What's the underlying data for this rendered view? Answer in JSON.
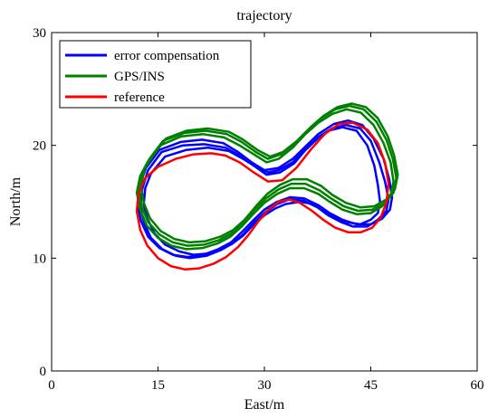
{
  "chart_data": {
    "type": "line",
    "title": "trajectory",
    "xlabel": "East/m",
    "ylabel": "North/m",
    "xlim": [
      0,
      60
    ],
    "ylim": [
      0,
      30
    ],
    "xticks": [
      0,
      15,
      30,
      45,
      60
    ],
    "yticks": [
      0,
      10,
      20,
      30
    ],
    "grid": false,
    "legend_position": "top-left",
    "series": [
      {
        "name": "error compensation",
        "color": "#0000ff",
        "laps": [
          {
            "x": [
              14,
              16,
              19,
              22,
              25,
              27,
              29,
              30.5,
              32,
              34,
              35.5,
              37,
              39,
              41,
              43,
              44.5,
              45.5,
              46,
              46.3,
              46,
              45,
              43.5,
              41.5,
              40,
              38.5,
              37,
              35,
              33,
              31.5,
              30,
              28.5,
              27,
              25.5,
              24,
              22,
              20,
              18,
              16,
              14.5,
              13.5,
              13,
              13.2,
              14
            ],
            "y": [
              17.5,
              19,
              19.6,
              19.8,
              19.5,
              18.8,
              18,
              17.6,
              17.8,
              18.5,
              19.5,
              20.5,
              21.3,
              21.6,
              21.3,
              20,
              18.2,
              16.5,
              15,
              14,
              13.4,
              13,
              13.2,
              13.6,
              14.2,
              14.8,
              15,
              14.8,
              14.4,
              13.8,
              13,
              12,
              11.3,
              10.8,
              10.4,
              10.3,
              10.6,
              11.2,
              12.2,
              13.5,
              14.8,
              16.2,
              17.5
            ]
          },
          {
            "x": [
              13.6,
              15.5,
              18.5,
              21.5,
              24.5,
              26.5,
              28.5,
              30.3,
              32.2,
              34.2,
              35.8,
              37.5,
              39.5,
              41.5,
              43.5,
              45,
              46.2,
              47,
              47.5,
              47.2,
              46,
              44.5,
              42.5,
              40.8,
              39,
              37.5,
              35.5,
              33.5,
              31.8,
              30.2,
              28.6,
              27,
              25.5,
              23.8,
              21.8,
              19.5,
              17.5,
              15.6,
              14,
              13,
              12.5,
              12.8,
              13.6
            ],
            "y": [
              17.8,
              19.4,
              20,
              20.1,
              19.8,
              19.1,
              18.2,
              17.4,
              17.6,
              18.4,
              19.6,
              20.6,
              21.5,
              21.8,
              21.5,
              20.4,
              18.5,
              16.8,
              15.2,
              14.2,
              13.4,
              12.8,
              12.8,
              13.2,
              13.8,
              14.5,
              15.1,
              15.2,
              14.8,
              14.1,
              13.2,
              12.1,
              11.3,
              10.7,
              10.2,
              10,
              10.2,
              10.8,
              11.8,
              13.2,
              14.6,
              16.2,
              17.8
            ]
          },
          {
            "x": [
              13.3,
              15.2,
              18.2,
              21.2,
              24.2,
              26.3,
              28.2,
              30,
              32,
              34,
              35.8,
              37.6,
              39.8,
              41.8,
              43.8,
              45.4,
              46.8,
              47.6,
              48,
              47.7,
              46.6,
              45,
              43,
              41,
              39.2,
              37.6,
              35.6,
              33.6,
              31.8,
              30,
              28.5,
              26.8,
              25.3,
              23.5,
              21.4,
              19.2,
              17.1,
              15.2,
              13.6,
              12.6,
              12.1,
              12.4,
              13.3
            ],
            "y": [
              18,
              19.6,
              20.3,
              20.5,
              20.2,
              19.4,
              18.5,
              17.8,
              18,
              18.8,
              19.9,
              21,
              21.9,
              22.2,
              21.8,
              20.6,
              18.8,
              17,
              15.4,
              14.3,
              13.5,
              13,
              13,
              13.4,
              14,
              14.7,
              15.3,
              15.4,
              15,
              14.3,
              13.4,
              12.3,
              11.4,
              10.8,
              10.3,
              10.1,
              10.3,
              10.9,
              11.9,
              13.3,
              14.8,
              16.4,
              18
            ]
          }
        ]
      },
      {
        "name": "GPS/INS",
        "color": "#008000",
        "laps": [
          {
            "x": [
              13.5,
              15.3,
              18.3,
              21.3,
              24.3,
              26.5,
              28.5,
              30.3,
              32,
              34,
              35.8,
              37.6,
              39.6,
              41.6,
              43.6,
              45.4,
              46.8,
              47.8,
              48.2,
              47.8,
              46.6,
              45,
              43,
              41,
              39.2,
              37.6,
              35.6,
              33.6,
              31.8,
              30,
              28.4,
              26.8,
              25.2,
              23.4,
              21.3,
              19,
              16.9,
              15,
              13.4,
              12.5,
              12,
              12.5,
              13.5
            ],
            "y": [
              18.5,
              20,
              20.8,
              21,
              20.7,
              20,
              19.2,
              18.5,
              18.8,
              19.8,
              21,
              22,
              22.8,
              23.2,
              22.9,
              21.8,
              20.2,
              18.5,
              16.8,
              15.5,
              14.6,
              14,
              13.9,
              14.3,
              15,
              15.7,
              16.2,
              16.2,
              15.7,
              14.9,
              13.9,
              12.8,
              11.9,
              11.3,
              10.9,
              10.8,
              11.1,
              11.8,
              12.9,
              14.3,
              15.8,
              17.3,
              18.5
            ]
          },
          {
            "x": [
              13.8,
              15.7,
              18.7,
              21.7,
              24.7,
              26.8,
              28.8,
              30.5,
              32.3,
              34.3,
              36.2,
              38,
              40,
              42,
              44,
              45.8,
              47.2,
              48.1,
              48.6,
              48.2,
              47,
              45.2,
              43.2,
              41.2,
              39.4,
              37.8,
              35.8,
              33.8,
              32,
              30.2,
              28.6,
              27,
              25.4,
              23.6,
              21.5,
              19.2,
              17.1,
              15.2,
              13.6,
              12.7,
              12.3,
              12.8,
              13.8
            ],
            "y": [
              18.8,
              20.4,
              21.1,
              21.3,
              21,
              20.3,
              19.4,
              18.8,
              19.2,
              20.2,
              21.4,
              22.4,
              23.2,
              23.5,
              23.2,
              22.1,
              20.5,
              18.8,
              17.1,
              15.8,
              14.9,
              14.3,
              14.2,
              14.6,
              15.3,
              16,
              16.6,
              16.6,
              16.1,
              15.3,
              14.3,
              13.1,
              12.2,
              11.6,
              11.2,
              11.1,
              11.4,
              12.1,
              13.2,
              14.6,
              16.1,
              17.6,
              18.8
            ]
          },
          {
            "x": [
              14.2,
              16.1,
              19,
              22,
              25,
              27,
              29,
              30.8,
              32.6,
              34.6,
              36.5,
              38.3,
              40.3,
              42.3,
              44.3,
              46,
              47.4,
              48.3,
              48.8,
              48.4,
              47.2,
              45.5,
              43.5,
              41.5,
              39.6,
              38,
              36,
              34,
              32.2,
              30.4,
              28.8,
              27.2,
              25.6,
              23.8,
              21.7,
              19.4,
              17.3,
              15.4,
              13.9,
              13,
              12.6,
              13.1,
              14.2
            ],
            "y": [
              19,
              20.6,
              21.3,
              21.5,
              21.2,
              20.5,
              19.6,
              19,
              19.4,
              20.4,
              21.6,
              22.6,
              23.4,
              23.7,
              23.4,
              22.4,
              20.8,
              19.1,
              17.4,
              16.1,
              15.2,
              14.6,
              14.5,
              14.9,
              15.6,
              16.4,
              17,
              17,
              16.5,
              15.7,
              14.6,
              13.4,
              12.5,
              11.9,
              11.5,
              11.4,
              11.7,
              12.4,
              13.5,
              14.9,
              16.4,
              17.9,
              19
            ]
          }
        ]
      },
      {
        "name": "reference",
        "color": "#ff0000",
        "laps": [
          {
            "x": [
              12.3,
              13.2,
              15,
              17.5,
              20,
              22.5,
              24.5,
              26.5,
              28.5,
              30.5,
              32.5,
              34.5,
              36.5,
              38.5,
              40.5,
              42.5,
              44.5,
              46,
              47,
              47.5,
              47.2,
              46.4,
              45.2,
              43.6,
              41.8,
              40,
              38.3,
              36.7,
              35,
              33.5,
              32,
              30.6,
              29.2,
              27.8,
              26.3,
              24.6,
              22.8,
              20.8,
              18.8,
              16.8,
              15,
              13.5,
              12.5,
              12,
              12.3
            ],
            "y": [
              15.8,
              17.1,
              18.1,
              18.8,
              19.2,
              19.3,
              19.1,
              18.5,
              17.6,
              16.8,
              16.9,
              18,
              19.6,
              21,
              21.9,
              22,
              21.4,
              20.2,
              18.5,
              16.6,
              14.9,
              13.6,
              12.7,
              12.3,
              12.3,
              12.7,
              13.4,
              14.2,
              14.9,
              15.2,
              15,
              14.3,
              13.3,
              12.1,
              11,
              10.1,
              9.5,
              9.1,
              9,
              9.3,
              10,
              11.1,
              12.5,
              14.2,
              15.8
            ]
          }
        ]
      }
    ]
  }
}
